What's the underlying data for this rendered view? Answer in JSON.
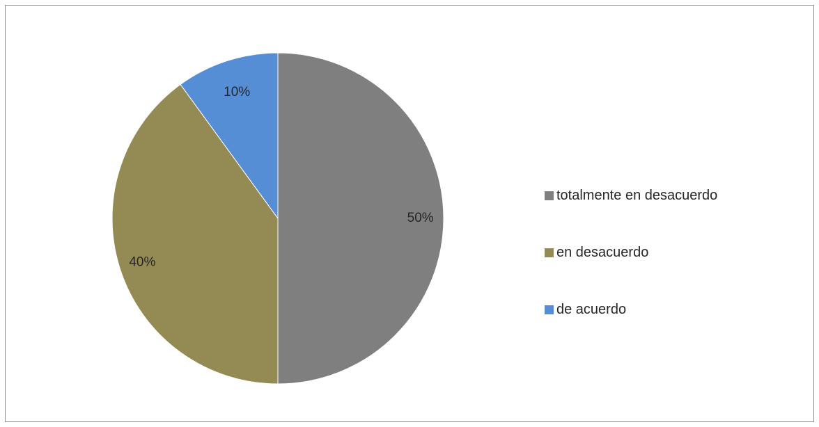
{
  "chart_data": {
    "type": "pie",
    "title": "",
    "categories": [
      "totalmente en desacuerdo",
      "en desacuerdo",
      "de acuerdo"
    ],
    "values": [
      50,
      40,
      10
    ],
    "data_labels": [
      "50%",
      "40%",
      "10%"
    ],
    "colors": [
      "#7f7f7f",
      "#948a54",
      "#558ed5"
    ],
    "start_angle": "12 o'clock",
    "direction": "clockwise",
    "legend_position": "right"
  }
}
